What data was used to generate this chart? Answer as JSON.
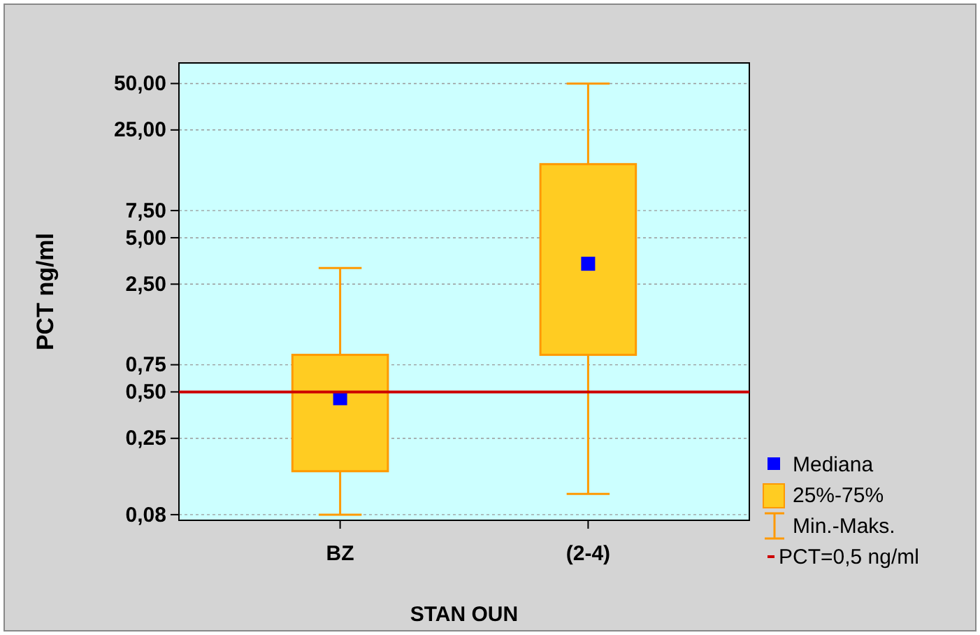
{
  "chart_data": {
    "type": "box",
    "xlabel": "STAN OUN",
    "ylabel": "PCT ng/ml",
    "categories": [
      "BZ",
      "(2-4)"
    ],
    "series": [
      {
        "color": "#ffcc22",
        "boxes": [
          {
            "low": 0.08,
            "q1": 0.153,
            "median": 0.455,
            "q3": 0.87,
            "high": 3.18
          },
          {
            "low": 0.109,
            "q1": 0.87,
            "median": 3.39,
            "q3": 15.0,
            "high": 50
          }
        ]
      }
    ],
    "log": true,
    "ylim": [
      0.0735,
      68
    ],
    "yticks": [
      {
        "value": 0.08,
        "label": "0,08"
      },
      {
        "value": 0.25,
        "label": "0,25"
      },
      {
        "value": 0.5,
        "label": "0,50"
      },
      {
        "value": 0.75,
        "label": "0,75"
      },
      {
        "value": 2.5,
        "label": "2,50"
      },
      {
        "value": 5,
        "label": "5,00"
      },
      {
        "value": 7.5,
        "label": "7,50"
      },
      {
        "value": 25,
        "label": "25,00"
      },
      {
        "value": 50,
        "label": "50,00"
      }
    ],
    "grid": "y",
    "legend": "right",
    "annotations": [
      "Mediana",
      "25%-75%",
      "Min.-Maks."
    ],
    "ref_lines": [
      {
        "axis": "y",
        "value": 0.5,
        "label": "PCT=0,5 ng/ml",
        "color": "#cc0000"
      }
    ]
  }
}
